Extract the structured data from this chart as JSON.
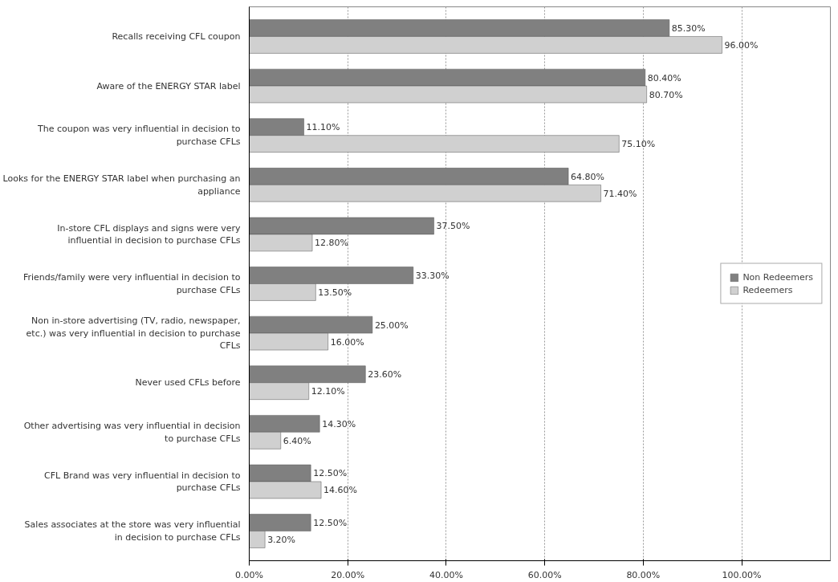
{
  "chart_data": {
    "type": "bar",
    "orientation": "horizontal",
    "categories": [
      "Recalls receiving CFL coupon",
      "Aware of the ENERGY STAR label",
      "The coupon was very influential in decision to purchase CFLs",
      "Looks for the ENERGY STAR label when purchasing an appliance",
      "In-store CFL displays and signs were very influential in decision to purchase CFLs",
      "Friends/family were very influential in decision to purchase CFLs",
      "Non in-store advertising (TV, radio, newspaper, etc.) was very influential in decision to purchase CFLs",
      "Never used CFLs before",
      "Other advertising was very influential in decision to purchase CFLs",
      "CFL Brand was very influential in decision to purchase CFLs",
      "Sales associates at the store was very influential in decision to purchase CFLs"
    ],
    "series": [
      {
        "name": "Non Redeemers",
        "color": "#808080",
        "values": [
          85.3,
          80.4,
          11.1,
          64.8,
          37.5,
          33.3,
          25.0,
          23.6,
          14.3,
          12.5,
          12.5
        ],
        "value_labels": [
          "85.30%",
          "80.40%",
          "11.10%",
          "64.80%",
          "37.50%",
          "33.30%",
          "25.00%",
          "23.60%",
          "14.30%",
          "12.50%",
          "12.50%"
        ]
      },
      {
        "name": "Redeemers",
        "color": "#d0d0d0",
        "values": [
          96.0,
          80.7,
          75.1,
          71.4,
          12.8,
          13.5,
          16.0,
          12.1,
          6.4,
          14.6,
          3.2
        ],
        "value_labels": [
          "96.00%",
          "80.70%",
          "75.10%",
          "71.40%",
          "12.80%",
          "13.50%",
          "16.00%",
          "12.10%",
          "6.40%",
          "14.60%",
          "3.20%"
        ]
      }
    ],
    "xlim": [
      0,
      118
    ],
    "xticks": [
      {
        "value": 0,
        "label": "0.00%"
      },
      {
        "value": 20,
        "label": "20.00%"
      },
      {
        "value": 40,
        "label": "40.00%"
      },
      {
        "value": 60,
        "label": "60.00%"
      },
      {
        "value": 80,
        "label": "80.00%"
      },
      {
        "value": 100,
        "label": "100.00%"
      }
    ],
    "grid": "x",
    "legend": "right"
  }
}
